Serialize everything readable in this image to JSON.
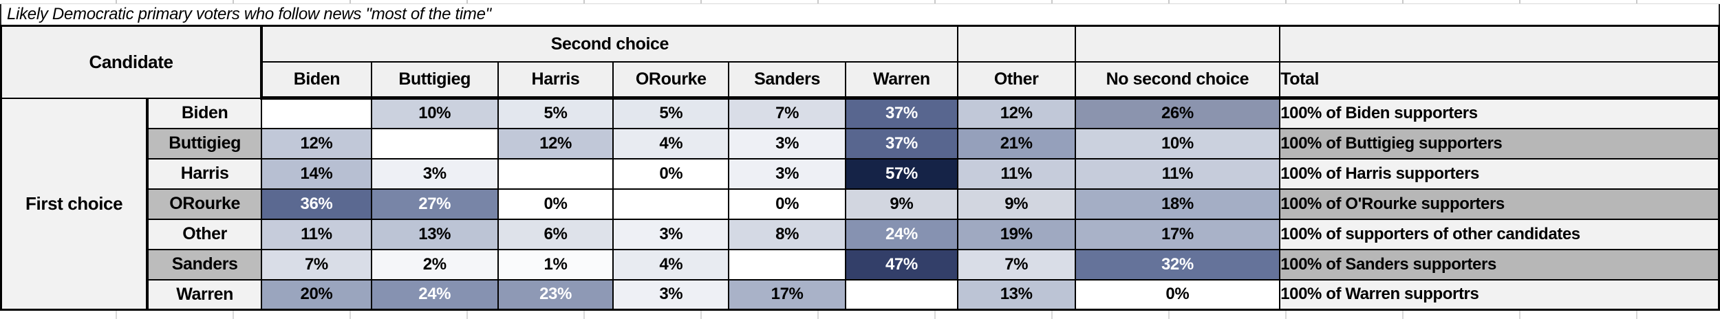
{
  "title": "Likely Democratic primary voters who follow news \"most of the time\"",
  "palette": {
    "header_bg": "#f0f0f0",
    "row_label_light": "#f2f2f2",
    "row_label_grey": "#bcbcbc",
    "heat_min": "#ffffff",
    "heat_max": "#152347",
    "border": "#000000"
  },
  "table": {
    "corner_header": "Candidate",
    "group_header": "Second choice",
    "row_group_label": "First choice",
    "col_headers": [
      "Biden",
      "Buttigieg",
      "Harris",
      "ORourke",
      "Sanders",
      "Warren",
      "Other",
      "No second choice",
      "Total"
    ],
    "rows": [
      {
        "label": "Biden",
        "label_bg": "#f2f2f2",
        "total_bg": "#f2f2f2",
        "total": "100% of Biden supporters",
        "cells": [
          {
            "v": "",
            "bg": "#ffffff",
            "fg": "#000000"
          },
          {
            "v": "10%",
            "bg": "#cbd1de",
            "fg": "#000000"
          },
          {
            "v": "5%",
            "bg": "#e3e7ee",
            "fg": "#000000"
          },
          {
            "v": "5%",
            "bg": "#e3e7ee",
            "fg": "#000000"
          },
          {
            "v": "7%",
            "bg": "#d9dde7",
            "fg": "#000000"
          },
          {
            "v": "37%",
            "bg": "#58668f",
            "fg": "#ffffff"
          },
          {
            "v": "12%",
            "bg": "#c1c8d8",
            "fg": "#000000"
          },
          {
            "v": "26%",
            "bg": "#8b94ae",
            "fg": "#000000"
          }
        ]
      },
      {
        "label": "Buttigieg",
        "label_bg": "#bcbcbc",
        "total_bg": "#b7b7b7",
        "total": "100% of Buttigieg supporters",
        "cells": [
          {
            "v": "12%",
            "bg": "#c1c8d8",
            "fg": "#000000"
          },
          {
            "v": "",
            "bg": "#ffffff",
            "fg": "#000000"
          },
          {
            "v": "12%",
            "bg": "#c1c8d8",
            "fg": "#000000"
          },
          {
            "v": "4%",
            "bg": "#e8ebf1",
            "fg": "#000000"
          },
          {
            "v": "3%",
            "bg": "#eef0f5",
            "fg": "#000000"
          },
          {
            "v": "37%",
            "bg": "#58668f",
            "fg": "#ffffff"
          },
          {
            "v": "21%",
            "bg": "#95a0bb",
            "fg": "#000000"
          },
          {
            "v": "10%",
            "bg": "#cbd1de",
            "fg": "#000000"
          }
        ]
      },
      {
        "label": "Harris",
        "label_bg": "#f2f2f2",
        "total_bg": "#f2f2f2",
        "total": "100% of Harris supporters",
        "cells": [
          {
            "v": "14%",
            "bg": "#b7bfd2",
            "fg": "#000000"
          },
          {
            "v": "3%",
            "bg": "#eef0f5",
            "fg": "#000000"
          },
          {
            "v": "",
            "bg": "#ffffff",
            "fg": "#000000"
          },
          {
            "v": "0%",
            "bg": "#ffffff",
            "fg": "#000000"
          },
          {
            "v": "3%",
            "bg": "#eef0f5",
            "fg": "#000000"
          },
          {
            "v": "57%",
            "bg": "#152347",
            "fg": "#ffffff"
          },
          {
            "v": "11%",
            "bg": "#c6ccdb",
            "fg": "#000000"
          },
          {
            "v": "11%",
            "bg": "#c6ccdb",
            "fg": "#000000"
          }
        ]
      },
      {
        "label": "ORourke",
        "label_bg": "#bcbcbc",
        "total_bg": "#b7b7b7",
        "total": "100% of O'Rourke supporters",
        "cells": [
          {
            "v": "36%",
            "bg": "#5b6991",
            "fg": "#ffffff"
          },
          {
            "v": "27%",
            "bg": "#7885a7",
            "fg": "#ffffff"
          },
          {
            "v": "0%",
            "bg": "#ffffff",
            "fg": "#000000"
          },
          {
            "v": "",
            "bg": "#ffffff",
            "fg": "#000000"
          },
          {
            "v": "0%",
            "bg": "#ffffff",
            "fg": "#000000"
          },
          {
            "v": "9%",
            "bg": "#d2d6e0",
            "fg": "#000000"
          },
          {
            "v": "9%",
            "bg": "#d2d6e0",
            "fg": "#000000"
          },
          {
            "v": "18%",
            "bg": "#a4aec5",
            "fg": "#000000"
          }
        ]
      },
      {
        "label": "Other",
        "label_bg": "#f2f2f2",
        "total_bg": "#f2f2f2",
        "total": "100% of supporters of other candidates",
        "cells": [
          {
            "v": "11%",
            "bg": "#c6ccdb",
            "fg": "#000000"
          },
          {
            "v": "13%",
            "bg": "#bcc4d5",
            "fg": "#000000"
          },
          {
            "v": "6%",
            "bg": "#dee2ea",
            "fg": "#000000"
          },
          {
            "v": "3%",
            "bg": "#eef0f5",
            "fg": "#000000"
          },
          {
            "v": "8%",
            "bg": "#d4d9e4",
            "fg": "#000000"
          },
          {
            "v": "24%",
            "bg": "#8692b1",
            "fg": "#ffffff"
          },
          {
            "v": "19%",
            "bg": "#9fa9c1",
            "fg": "#000000"
          },
          {
            "v": "17%",
            "bg": "#a9b2c8",
            "fg": "#000000"
          }
        ]
      },
      {
        "label": "Sanders",
        "label_bg": "#bcbcbc",
        "total_bg": "#b7b7b7",
        "total": "100% of Sanders supporters",
        "cells": [
          {
            "v": "7%",
            "bg": "#d9dde7",
            "fg": "#000000"
          },
          {
            "v": "2%",
            "bg": "#f5f6f9",
            "fg": "#000000"
          },
          {
            "v": "1%",
            "bg": "#fafbfc",
            "fg": "#000000"
          },
          {
            "v": "4%",
            "bg": "#e8ebf1",
            "fg": "#000000"
          },
          {
            "v": "",
            "bg": "#ffffff",
            "fg": "#000000"
          },
          {
            "v": "47%",
            "bg": "#333f69",
            "fg": "#ffffff"
          },
          {
            "v": "7%",
            "bg": "#d9dde7",
            "fg": "#000000"
          },
          {
            "v": "32%",
            "bg": "#65739a",
            "fg": "#ffffff"
          }
        ]
      },
      {
        "label": "Warren",
        "label_bg": "#f2f2f2",
        "total_bg": "#f2f2f2",
        "total": "100% of Warren supportrs",
        "cells": [
          {
            "v": "20%",
            "bg": "#9aa5be",
            "fg": "#000000"
          },
          {
            "v": "24%",
            "bg": "#8692b1",
            "fg": "#ffffff"
          },
          {
            "v": "23%",
            "bg": "#8e99b5",
            "fg": "#ffffff"
          },
          {
            "v": "3%",
            "bg": "#eef0f5",
            "fg": "#000000"
          },
          {
            "v": "17%",
            "bg": "#a9b2c8",
            "fg": "#000000"
          },
          {
            "v": "",
            "bg": "#ffffff",
            "fg": "#000000"
          },
          {
            "v": "13%",
            "bg": "#bcc4d5",
            "fg": "#000000"
          },
          {
            "v": "0%",
            "bg": "#ffffff",
            "fg": "#000000"
          }
        ]
      }
    ]
  }
}
